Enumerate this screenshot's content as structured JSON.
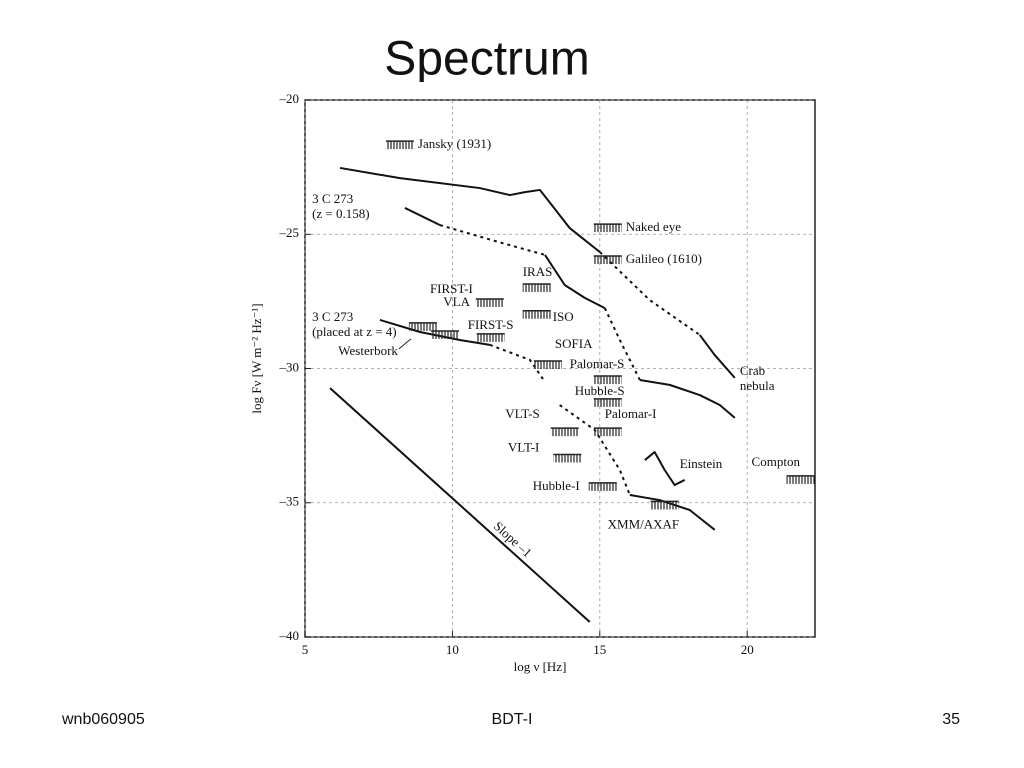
{
  "slide": {
    "title": "Spectrum",
    "footer_left": "wnb060905",
    "footer_center": "BDT-I",
    "footer_right": "35"
  },
  "chart_data": {
    "type": "line",
    "x_label": "log ν [Hz]",
    "y_label": "log Fν [W m⁻² Hz⁻¹]",
    "xlim": [
      5,
      22.3
    ],
    "ylim": [
      -40,
      -20
    ],
    "xticks": [
      5,
      10,
      15,
      20
    ],
    "yticks": [
      {
        "value": -20,
        "label": "–20"
      },
      {
        "value": -25,
        "label": "–25"
      },
      {
        "value": -30,
        "label": "–30"
      },
      {
        "value": -35,
        "label": "–35"
      },
      {
        "value": -40,
        "label": "–40"
      }
    ],
    "grid": true,
    "color": "#111111",
    "series": [
      {
        "style": "solid",
        "x": [
          6.19,
          8.22,
          10.93,
          11.95,
          12.46,
          12.97,
          13.37,
          13.98,
          15.0
        ],
        "values": [
          -22.53,
          -22.91,
          -23.28,
          -23.54,
          -23.43,
          -23.35,
          -23.91,
          -24.77,
          -25.66
        ]
      },
      {
        "style": "dashed",
        "x": [
          15.0,
          16.69,
          18.39
        ],
        "values": [
          -25.66,
          -27.45,
          -28.75
        ]
      },
      {
        "style": "solid",
        "x": [
          18.39,
          18.9,
          19.58
        ],
        "values": [
          -28.75,
          -29.5,
          -30.35
        ]
      },
      {
        "style": "solid",
        "x": [
          8.39,
          9.58
        ],
        "values": [
          -24.02,
          -24.66
        ]
      },
      {
        "style": "dashed",
        "x": [
          9.58,
          11.6,
          13.14
        ],
        "values": [
          -24.66,
          -25.3,
          -25.77
        ]
      },
      {
        "style": "solid",
        "x": [
          13.14,
          13.81,
          14.49,
          15.17
        ],
        "values": [
          -25.77,
          -26.89,
          -27.37,
          -27.75
        ]
      },
      {
        "style": "dashed",
        "x": [
          15.17,
          15.68,
          16.36
        ],
        "values": [
          -27.75,
          -28.94,
          -30.43
        ]
      },
      {
        "style": "solid",
        "x": [
          16.36,
          17.37,
          18.39,
          19.07,
          19.58
        ],
        "values": [
          -30.43,
          -30.61,
          -30.99,
          -31.36,
          -31.84
        ]
      },
      {
        "style": "solid",
        "x": [
          7.54,
          8.9,
          10.25,
          11.27
        ],
        "values": [
          -28.19,
          -28.64,
          -28.94,
          -29.12
        ]
      },
      {
        "style": "dashed",
        "x": [
          11.27,
          12.63,
          13.14
        ],
        "values": [
          -29.12,
          -29.68,
          -30.5
        ]
      },
      {
        "style": "dashed",
        "x": [
          13.64,
          14.83,
          15.68,
          16.02
        ],
        "values": [
          -31.36,
          -32.29,
          -33.78,
          -34.71
        ]
      },
      {
        "style": "solid",
        "x": [
          16.02,
          17.03,
          18.05,
          18.9
        ],
        "values": [
          -34.71,
          -34.9,
          -35.27,
          -36.01
        ]
      },
      {
        "style": "solid",
        "x": [
          16.53,
          16.86,
          17.2,
          17.54,
          17.88
        ],
        "values": [
          -33.41,
          -33.11,
          -33.78,
          -34.34,
          -34.15
        ]
      },
      {
        "style": "solid",
        "x": [
          5.85,
          14.66
        ],
        "values": [
          -30.73,
          -39.44
        ]
      }
    ],
    "instruments": [
      {
        "label": "Jansky (1931)",
        "x": 8.22,
        "y": -21.68
      },
      {
        "label": "Naked eye",
        "x": 15.27,
        "y": -24.77
      },
      {
        "label": "Galileo (1610)",
        "x": 15.27,
        "y": -25.96
      },
      {
        "label": "IRAS",
        "x": 12.86,
        "y": -27.0
      },
      {
        "label": "FIRST-I",
        "x": 11.27,
        "y": -27.56
      },
      {
        "label": "VLA",
        "x": 9.75,
        "y": -28.75
      },
      {
        "label": "FIRST-S",
        "x": 11.3,
        "y": -28.86
      },
      {
        "label": "Westerbork",
        "x": 9.0,
        "y": -28.45
      },
      {
        "label": "ISO",
        "x": 12.86,
        "y": -28.0
      },
      {
        "label": "SOFIA",
        "x": 13.24,
        "y": -29.87
      },
      {
        "label": "Palomar-S",
        "x": 15.27,
        "y": -30.43
      },
      {
        "label": "Hubble-S",
        "x": 15.27,
        "y": -31.28
      },
      {
        "label": "Palomar-I",
        "x": 15.27,
        "y": -32.37
      },
      {
        "label": "VLT-S",
        "x": 13.81,
        "y": -32.37
      },
      {
        "label": "VLT-I",
        "x": 13.9,
        "y": -33.35
      },
      {
        "label": "Hubble-I",
        "x": 15.1,
        "y": -34.41
      },
      {
        "label": "XMM/AXAF",
        "x": 17.2,
        "y": -35.1
      },
      {
        "label": "Compton",
        "x": 21.81,
        "y": -34.15
      }
    ],
    "annotations": [
      {
        "lines": [
          "3 C 273",
          "(z = 0.158)"
        ],
        "x": 5.24,
        "y": -23.72
      },
      {
        "lines": [
          "3 C 273",
          "(placed at z = 4)"
        ],
        "x": 5.24,
        "y": -28.12
      },
      {
        "lines": [
          "Crab",
          "nebula"
        ],
        "x": 19.75,
        "y": -30.13
      },
      {
        "lines": [
          "Einstein"
        ],
        "x": 17.71,
        "y": -33.59
      },
      {
        "lines": [
          "Slope –1"
        ],
        "x": 11.44,
        "y": -35.83
      }
    ]
  }
}
